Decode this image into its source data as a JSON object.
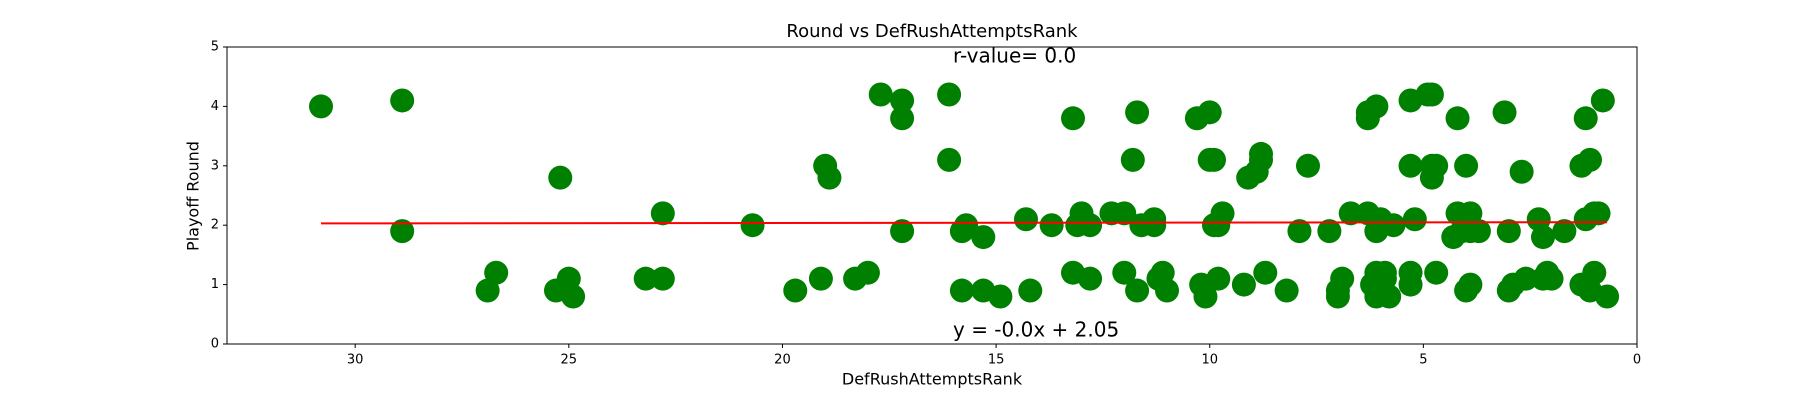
{
  "chart_data": {
    "type": "scatter",
    "title": "Round vs DefRushAttemptsRank",
    "x_label": "DefRushAttemptsRank",
    "y_label": "Playoff Round",
    "color": "green",
    "x": [
      30.8,
      28.9,
      28.9,
      26.7,
      26.9,
      25.2,
      25.3,
      25.0,
      24.9,
      23.2,
      22.8,
      22.8,
      20.7,
      19.7,
      19.1,
      19.0,
      18.9,
      18.3,
      18.0,
      17.7,
      17.2,
      17.2,
      17.2,
      16.1,
      16.1,
      15.8,
      15.8,
      15.7,
      15.3,
      15.3,
      14.9,
      14.2,
      14.3,
      13.7,
      13.2,
      13.2,
      13.1,
      13.0,
      12.8,
      12.8,
      12.3,
      12.0,
      12.0,
      11.8,
      11.7,
      11.7,
      11.6,
      11.3,
      11.3,
      11.2,
      11.1,
      11.0,
      10.3,
      10.0,
      10.2,
      10.1,
      10.0,
      9.9,
      9.9,
      9.8,
      9.8,
      9.7,
      9.2,
      9.1,
      8.9,
      8.8,
      8.8,
      8.7,
      8.2,
      7.9,
      7.7,
      7.2,
      7.0,
      7.0,
      6.9,
      6.7,
      6.3,
      6.3,
      6.3,
      6.2,
      6.1,
      6.1,
      6.1,
      6.1,
      6.0,
      5.9,
      5.9,
      5.8,
      5.7,
      5.3,
      5.3,
      5.3,
      5.3,
      5.2,
      4.9,
      4.8,
      4.8,
      4.8,
      4.7,
      4.7,
      4.3,
      4.2,
      4.2,
      4.1,
      4.0,
      4.0,
      3.9,
      3.9,
      3.9,
      3.7,
      3.1,
      3.0,
      3.0,
      2.9,
      2.7,
      2.6,
      2.3,
      2.2,
      2.2,
      2.1,
      2.0,
      1.7,
      1.3,
      1.3,
      1.2,
      1.2,
      1.1,
      1.1,
      1.0,
      1.0,
      0.9,
      0.8,
      0.7
    ],
    "values": [
      4.0,
      4.1,
      1.9,
      1.2,
      0.9,
      2.8,
      0.9,
      1.1,
      0.8,
      1.1,
      1.1,
      2.2,
      2.0,
      0.9,
      1.1,
      3.0,
      2.8,
      1.1,
      1.2,
      4.2,
      4.1,
      3.8,
      1.9,
      4.2,
      3.1,
      0.9,
      1.9,
      2.0,
      1.8,
      0.9,
      0.8,
      0.9,
      2.1,
      2.0,
      3.8,
      1.2,
      2.0,
      2.2,
      1.1,
      2.0,
      2.2,
      1.2,
      2.2,
      3.1,
      3.9,
      0.9,
      2.0,
      2.1,
      2.0,
      1.1,
      1.2,
      0.9,
      3.8,
      3.9,
      1.0,
      0.8,
      3.1,
      3.1,
      2.0,
      1.1,
      2.0,
      2.2,
      1.0,
      2.8,
      2.9,
      3.2,
      3.1,
      1.2,
      0.9,
      1.9,
      3.0,
      1.9,
      0.9,
      0.8,
      1.1,
      2.2,
      3.8,
      3.9,
      2.2,
      1.0,
      4.0,
      1.9,
      1.2,
      0.8,
      2.1,
      1.2,
      1.1,
      0.8,
      2.0,
      4.1,
      3.0,
      1.2,
      1.0,
      2.1,
      4.2,
      4.2,
      3.0,
      2.8,
      3.0,
      1.2,
      1.8,
      3.8,
      2.2,
      1.9,
      3.0,
      0.9,
      1.0,
      2.2,
      1.9,
      1.9,
      3.9,
      1.9,
      0.9,
      1.0,
      2.9,
      1.1,
      2.1,
      1.8,
      1.1,
      1.2,
      1.1,
      1.9,
      3.0,
      1.0,
      3.8,
      2.1,
      3.1,
      0.9,
      1.2,
      2.2,
      2.2,
      4.1,
      0.8
    ],
    "fit": {
      "x": [
        30.8,
        0.7
      ],
      "values": [
        2.03,
        2.05
      ],
      "color": "red"
    },
    "annotations": [
      {
        "text": "r-value= 0.0",
        "color": "purple"
      },
      {
        "text": "y = -0.0x + 2.05",
        "color": "red"
      }
    ],
    "xlim": [
      33,
      0
    ],
    "ylim": [
      0,
      5
    ],
    "xticks": [
      30,
      25,
      20,
      15,
      10,
      5,
      0
    ],
    "yticks": [
      0,
      1,
      2,
      3,
      4,
      5
    ]
  }
}
